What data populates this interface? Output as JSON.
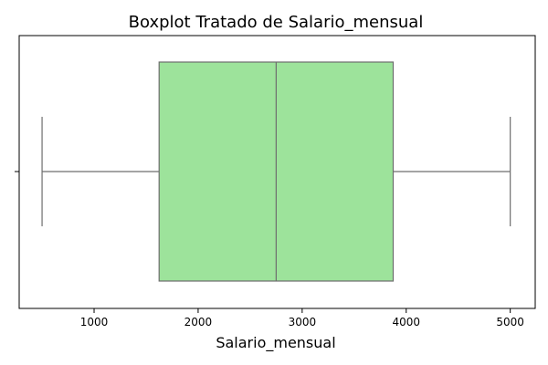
{
  "chart_data": {
    "type": "boxplot",
    "title": "Boxplot Tratado de Salario_mensual",
    "xlabel": "Salario_mensual",
    "ylabel": "",
    "orientation": "horizontal",
    "xlim": [
      280,
      5240
    ],
    "x_ticks": [
      1000,
      2000,
      3000,
      4000,
      5000
    ],
    "box": {
      "min": 500,
      "q1": 1625,
      "median": 2750,
      "q3": 3875,
      "max": 5000
    },
    "grid": false,
    "legend": "none",
    "colors": {
      "box_fill": "#9de39b",
      "lines": "#6e6e6e",
      "axes": "#000000"
    }
  }
}
